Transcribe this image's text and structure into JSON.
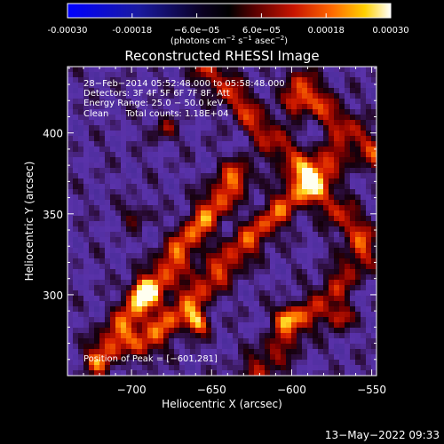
{
  "colorbar": {
    "tick_labels": [
      "-0.00030",
      "-0.00018",
      "−6.0e−05",
      "6.0e−05",
      "0.00018",
      "0.00030"
    ],
    "tick_values": [
      -0.0003,
      -0.00018,
      -6e-05,
      6e-05,
      0.00018,
      0.0003
    ],
    "range": [
      -0.0003,
      0.0003
    ],
    "units_prefix": "(photons cm",
    "units_sup1": "−2",
    "units_mid1": " s",
    "units_sup2": "−1",
    "units_mid2": " asec",
    "units_sup3": "−2",
    "units_suffix": ")"
  },
  "chart_data": {
    "type": "heatmap",
    "title": "Reconstructed RHESSI Image",
    "xlabel": "Heliocentric X (arcsec)",
    "ylabel": "Heliocentric Y (arcsec)",
    "xlim": [
      -740,
      -547
    ],
    "ylim": [
      250,
      441
    ],
    "x_ticks": [
      -700,
      -650,
      -600,
      -550
    ],
    "x_tick_labels": [
      "−700",
      "−650",
      "−600",
      "−550"
    ],
    "y_ticks": [
      300,
      350,
      400
    ],
    "y_tick_labels": [
      "300",
      "350",
      "400"
    ],
    "annotations": [
      "28−Feb−2014 05:52:48.000 to 05:58:48.000",
      "Detectors: 3F 4F 5F 6F 7F 8F, Att",
      "Energy Range: 25.0 − 50.0 keV",
      "Clean      Total counts: 1.18E+04"
    ],
    "peak_label": "Position of Peak = [−601,281]",
    "peak_position": [
      -601,
      281
    ],
    "colormap": "blue-black-red-yellow-white"
  },
  "footer": {
    "timestamp": "13−May−2022 09:33"
  }
}
